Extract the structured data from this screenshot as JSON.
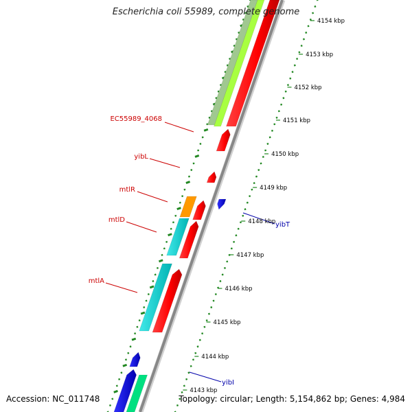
{
  "title": "Escherichia coli 55989, complete genome",
  "accession": "Accession: NC_011748",
  "summary": "Topology: circular; Length: 5,154,862 bp; Genes: 4,984",
  "scale_ticks": [
    "4154 kbp",
    "4153 kbp",
    "4152 kbp",
    "4151 kbp",
    "4150 kbp",
    "4149 kbp",
    "4148 kbp",
    "4147 kbp",
    "4146 kbp",
    "4145 kbp",
    "4144 kbp",
    "4143 kbp"
  ],
  "gene_labels": [
    {
      "text": "EC55989_4068",
      "strand": "forward",
      "color": "#cc0000"
    },
    {
      "text": "yibL",
      "strand": "forward",
      "color": "#cc0000"
    },
    {
      "text": "mtlR",
      "strand": "forward",
      "color": "#cc0000"
    },
    {
      "text": "mtlD",
      "strand": "forward",
      "color": "#cc0000"
    },
    {
      "text": "mtlA",
      "strand": "forward",
      "color": "#cc0000"
    },
    {
      "text": "yibT",
      "strand": "reverse",
      "color": "#0000aa"
    },
    {
      "text": "yibI",
      "strand": "reverse",
      "color": "#0000aa"
    }
  ],
  "colors": {
    "forward_gene": "#ff0000",
    "reverse_gene": "#0000ee",
    "cog_cyan": "#00d0d0",
    "cog_orange": "#ff9900",
    "cog_green": "#00e080",
    "cog_lightgreen": "#a8ff40",
    "cog_grey": "#a0c890",
    "backbone": "#8a8a8a",
    "tick": "#228822"
  }
}
